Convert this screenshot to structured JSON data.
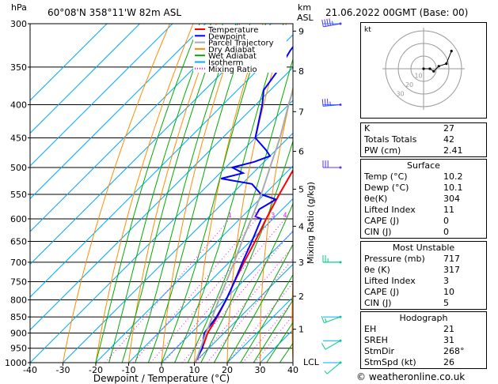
{
  "header": {
    "pressure_unit": "hPa",
    "location": "60°08'N  358°11'W  82m  ASL",
    "km_unit": "km",
    "km_sub": "ASL",
    "valid_time": "21.06.2022  00GMT  (Base: 00)"
  },
  "chart_data": {
    "type": "line",
    "title": "Skew-T log-P diagram",
    "xlabel": "Dewpoint / Temperature (°C)",
    "ylabel": "hPa",
    "right_label": "Mixing Ratio (g/kg)",
    "xlim": [
      -40,
      40
    ],
    "ylim": [
      1000,
      300
    ],
    "x_ticks": [
      -40,
      -30,
      -20,
      -10,
      0,
      10,
      20,
      30,
      40
    ],
    "pressure_levels": [
      300,
      350,
      400,
      450,
      500,
      550,
      600,
      650,
      700,
      750,
      800,
      850,
      900,
      950,
      1000
    ],
    "km_ticks": [
      {
        "km": "1",
        "p": 888
      },
      {
        "km": "2",
        "p": 790
      },
      {
        "km": "3",
        "p": 700
      },
      {
        "km": "4",
        "p": 616
      },
      {
        "km": "5",
        "p": 540
      },
      {
        "km": "6",
        "p": 472
      },
      {
        "km": "7",
        "p": 410
      },
      {
        "km": "8",
        "p": 355
      },
      {
        "km": "9",
        "p": 308
      }
    ],
    "lcl_label": "LCL",
    "mixing_ratio_labels": [
      "1",
      "2",
      "3",
      "4",
      "6",
      "8",
      "10",
      "15",
      "20",
      "25"
    ],
    "legend": [
      {
        "name": "Temperature",
        "color": "#ff0000"
      },
      {
        "name": "Dewpoint",
        "color": "#0000ff"
      },
      {
        "name": "Parcel Trajectory",
        "color": "#aaaaaa"
      },
      {
        "name": "Dry Adiabat",
        "color": "#ff8c00"
      },
      {
        "name": "Wet Adiabat",
        "color": "#00aa00"
      },
      {
        "name": "Isotherm",
        "color": "#00aaff"
      },
      {
        "name": "Mixing Ratio",
        "color": "#ff00ff"
      }
    ],
    "series": [
      {
        "name": "Temperature",
        "color": "#ff0000",
        "points": [
          [
            1000,
            10.2
          ],
          [
            950,
            8.0
          ],
          [
            900,
            5.0
          ],
          [
            850,
            3.0
          ],
          [
            800,
            0.5
          ],
          [
            750,
            -2.5
          ],
          [
            700,
            -5.5
          ],
          [
            650,
            -8.5
          ],
          [
            600,
            -12.0
          ],
          [
            550,
            -15.5
          ],
          [
            500,
            -19.0
          ],
          [
            450,
            -24.0
          ],
          [
            400,
            -30.0
          ],
          [
            350,
            -38.0
          ],
          [
            300,
            -47.0
          ]
        ]
      },
      {
        "name": "Dewpoint",
        "color": "#0000ff",
        "points": [
          [
            1000,
            10.1
          ],
          [
            950,
            8.0
          ],
          [
            900,
            4.0
          ],
          [
            850,
            2.8
          ],
          [
            800,
            0.5
          ],
          [
            750,
            -2.5
          ],
          [
            700,
            -6.0
          ],
          [
            650,
            -9.5
          ],
          [
            600,
            -13.5
          ],
          [
            595,
            -16.0
          ],
          [
            580,
            -17.0
          ],
          [
            560,
            -15.0
          ],
          [
            550,
            -21.0
          ],
          [
            530,
            -27.0
          ],
          [
            520,
            -38.0
          ],
          [
            510,
            -33.0
          ],
          [
            500,
            -38.0
          ],
          [
            490,
            -33.0
          ],
          [
            480,
            -30.0
          ],
          [
            470,
            -33.0
          ],
          [
            450,
            -40.0
          ],
          [
            400,
            -48.0
          ],
          [
            380,
            -52.0
          ],
          [
            350,
            -54.0
          ],
          [
            330,
            -56.0
          ],
          [
            300,
            -58.0
          ]
        ]
      },
      {
        "name": "Parcel Trajectory",
        "color": "#aaaaaa",
        "points": [
          [
            1000,
            10.2
          ],
          [
            950,
            7.5
          ],
          [
            900,
            4.5
          ],
          [
            850,
            1.5
          ],
          [
            800,
            -1.7
          ],
          [
            750,
            -5.0
          ],
          [
            700,
            -8.5
          ],
          [
            650,
            -12.5
          ],
          [
            600,
            -16.5
          ],
          [
            550,
            -21.0
          ],
          [
            500,
            -26.5
          ],
          [
            450,
            -32.5
          ],
          [
            400,
            -40.0
          ],
          [
            350,
            -48.0
          ],
          [
            300,
            -57.0
          ]
        ]
      }
    ],
    "wind_barbs": [
      {
        "p": 300,
        "dir": 260,
        "kt": 45
      },
      {
        "p": 400,
        "dir": 265,
        "kt": 35
      },
      {
        "p": 500,
        "dir": 270,
        "kt": 30
      },
      {
        "p": 700,
        "dir": 270,
        "kt": 25
      },
      {
        "p": 850,
        "dir": 250,
        "kt": 15
      },
      {
        "p": 925,
        "dir": 240,
        "kt": 10
      },
      {
        "p": 1000,
        "dir": 230,
        "kt": 5
      }
    ],
    "hodograph": {
      "unit_label": "kt",
      "ring_labels": [
        "10",
        "20",
        "30"
      ],
      "points": [
        [
          0,
          0
        ],
        [
          5,
          0
        ],
        [
          8,
          -2
        ],
        [
          12,
          2
        ],
        [
          18,
          4
        ],
        [
          22,
          14
        ]
      ]
    }
  },
  "indices": {
    "top": [
      {
        "label": "K",
        "value": "27"
      },
      {
        "label": "Totals Totals",
        "value": "42"
      },
      {
        "label": "PW (cm)",
        "value": "2.41"
      }
    ],
    "surface_title": "Surface",
    "surface": [
      {
        "label": "Temp (°C)",
        "value": "10.2"
      },
      {
        "label": "Dewp (°C)",
        "value": "10.1"
      },
      {
        "label": "θe(K)",
        "value": "304"
      },
      {
        "label": "Lifted Index",
        "value": "11"
      },
      {
        "label": "CAPE (J)",
        "value": "0"
      },
      {
        "label": "CIN (J)",
        "value": "0"
      }
    ],
    "unstable_title": "Most Unstable",
    "unstable": [
      {
        "label": "Pressure (mb)",
        "value": "717"
      },
      {
        "label": "θe (K)",
        "value": "317"
      },
      {
        "label": "Lifted Index",
        "value": "3"
      },
      {
        "label": "CAPE (J)",
        "value": "10"
      },
      {
        "label": "CIN (J)",
        "value": "5"
      }
    ],
    "hodo_title": "Hodograph",
    "hodo": [
      {
        "label": "EH",
        "value": "21"
      },
      {
        "label": "SREH",
        "value": "31"
      },
      {
        "label": "StmDir",
        "value": "268°"
      },
      {
        "label": "StmSpd (kt)",
        "value": "26"
      }
    ]
  },
  "credit": "© weatheronline.co.uk"
}
